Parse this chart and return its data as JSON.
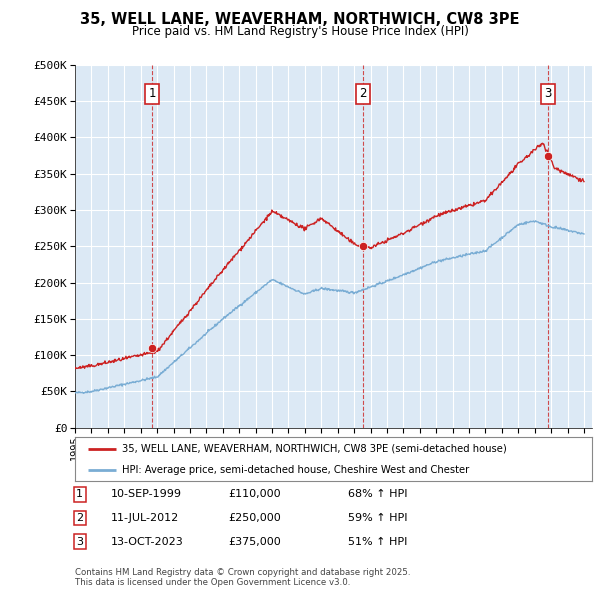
{
  "title": "35, WELL LANE, WEAVERHAM, NORTHWICH, CW8 3PE",
  "subtitle": "Price paid vs. HM Land Registry's House Price Index (HPI)",
  "ylim": [
    0,
    500000
  ],
  "yticks": [
    0,
    50000,
    100000,
    150000,
    200000,
    250000,
    300000,
    350000,
    400000,
    450000,
    500000
  ],
  "ytick_labels": [
    "£0",
    "£50K",
    "£100K",
    "£150K",
    "£200K",
    "£250K",
    "£300K",
    "£350K",
    "£400K",
    "£450K",
    "£500K"
  ],
  "xlim_start": 1995,
  "xlim_end": 2026.5,
  "hpi_color": "#7aadd4",
  "price_color": "#cc2222",
  "background_color": "#ffffff",
  "plot_bg_color": "#dce9f5",
  "grid_color": "#ffffff",
  "sale_points": [
    {
      "date_num": 1999.7,
      "price": 110000,
      "label": "1"
    },
    {
      "date_num": 2012.53,
      "price": 250000,
      "label": "2"
    },
    {
      "date_num": 2023.78,
      "price": 375000,
      "label": "3"
    }
  ],
  "legend_line1": "35, WELL LANE, WEAVERHAM, NORTHWICH, CW8 3PE (semi-detached house)",
  "legend_line2": "HPI: Average price, semi-detached house, Cheshire West and Chester",
  "footer": "Contains HM Land Registry data © Crown copyright and database right 2025.\nThis data is licensed under the Open Government Licence v3.0.",
  "table_rows": [
    [
      "1",
      "10-SEP-1999",
      "£110,000",
      "68% ↑ HPI"
    ],
    [
      "2",
      "11-JUL-2012",
      "£250,000",
      "59% ↑ HPI"
    ],
    [
      "3",
      "13-OCT-2023",
      "£375,000",
      "51% ↑ HPI"
    ]
  ]
}
